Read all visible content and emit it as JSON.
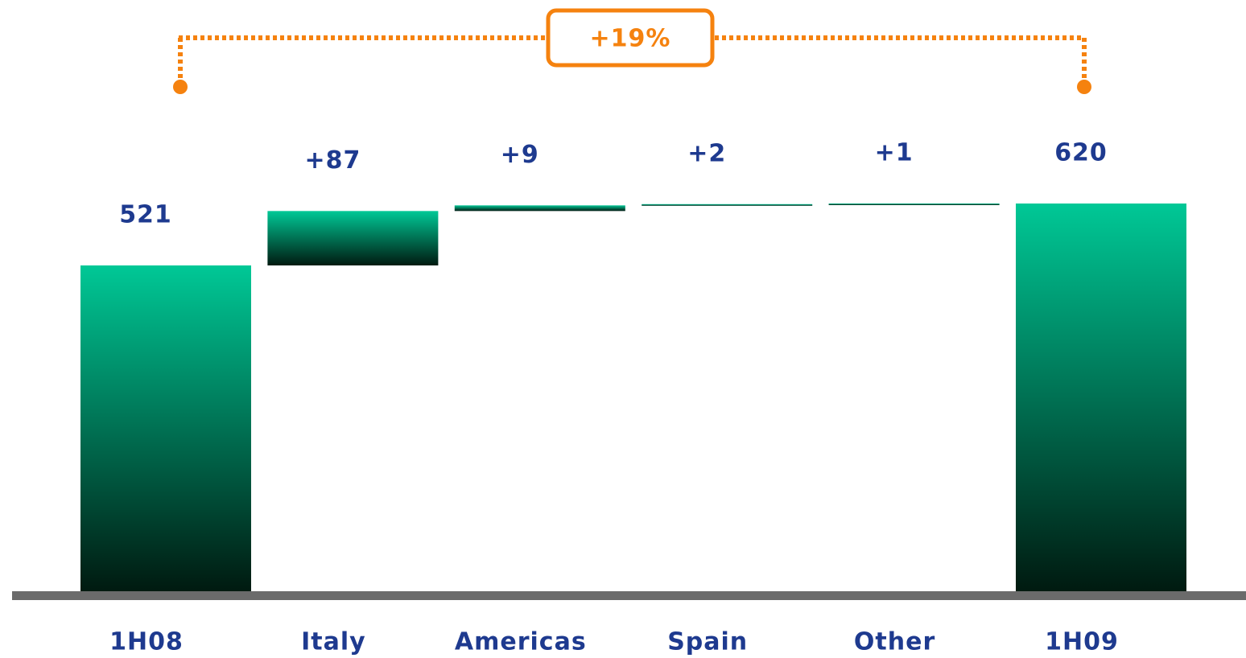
{
  "chart_data": {
    "type": "waterfall",
    "categories": [
      "1H08",
      "Italy",
      "Americas",
      "Spain",
      "Other",
      "1H09"
    ],
    "values": [
      521,
      87,
      9,
      2,
      1,
      620
    ],
    "value_labels": [
      "521",
      "+87",
      "+9",
      "+2",
      "+1",
      "620"
    ],
    "measures": [
      "absolute",
      "relative",
      "relative",
      "relative",
      "relative",
      "total"
    ],
    "annotation": "+19%",
    "color_top": "#00c896",
    "color_bottom": "#001a10",
    "bracket_color": "#f5820f"
  }
}
